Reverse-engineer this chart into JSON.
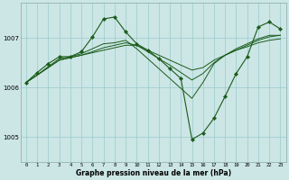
{
  "background_color": "#cce5e5",
  "grid_color": "#99cccc",
  "line_color": "#1a5c1a",
  "xlabel": "Graphe pression niveau de la mer (hPa)",
  "xlim": [
    -0.5,
    23.5
  ],
  "ylim": [
    1004.5,
    1007.7
  ],
  "yticks": [
    1005,
    1006,
    1007
  ],
  "xticks": [
    0,
    1,
    2,
    3,
    4,
    5,
    6,
    7,
    8,
    9,
    10,
    11,
    12,
    13,
    14,
    15,
    16,
    17,
    18,
    19,
    20,
    21,
    22,
    23
  ],
  "series_no_marker": [
    [
      1006.1,
      1006.25,
      1006.4,
      1006.55,
      1006.6,
      1006.65,
      1006.7,
      1006.75,
      1006.8,
      1006.85,
      1006.85,
      1006.75,
      1006.65,
      1006.55,
      1006.45,
      1006.35,
      1006.4,
      1006.55,
      1006.65,
      1006.75,
      1006.82,
      1006.9,
      1006.95,
      1006.98
    ],
    [
      1006.1,
      1006.25,
      1006.4,
      1006.55,
      1006.6,
      1006.65,
      1006.72,
      1006.8,
      1006.85,
      1006.9,
      1006.85,
      1006.72,
      1006.58,
      1006.45,
      1006.3,
      1006.15,
      1006.28,
      1006.5,
      1006.65,
      1006.75,
      1006.85,
      1006.95,
      1007.02,
      1007.05
    ],
    [
      1006.1,
      1006.25,
      1006.42,
      1006.58,
      1006.62,
      1006.68,
      1006.78,
      1006.88,
      1006.9,
      1006.95,
      1006.78,
      1006.58,
      1006.38,
      1006.18,
      1005.98,
      1005.78,
      1006.1,
      1006.48,
      1006.65,
      1006.78,
      1006.88,
      1006.98,
      1007.05,
      1007.05
    ]
  ],
  "series_with_marker": [
    [
      1006.1,
      1006.3,
      1006.48,
      1006.62,
      1006.62,
      1006.72,
      1007.02,
      1007.38,
      1007.42,
      1007.12,
      1006.88,
      1006.75,
      1006.58,
      1006.38,
      1006.18,
      1004.95,
      1005.08,
      1005.38,
      1005.82,
      1006.28,
      1006.62,
      1007.22,
      1007.32,
      1007.18
    ]
  ]
}
